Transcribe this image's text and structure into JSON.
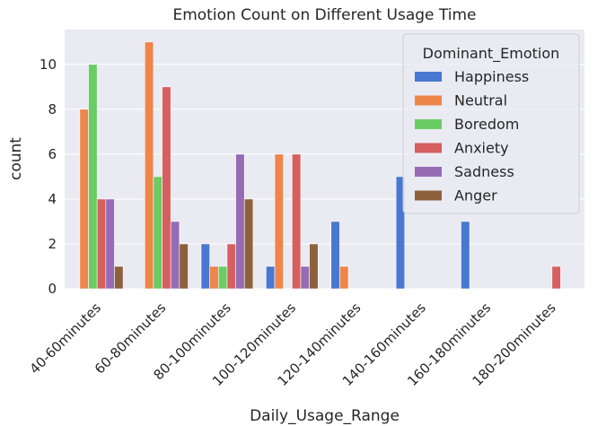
{
  "chart_data": {
    "type": "bar",
    "title": "Emotion Count on Different Usage Time",
    "xlabel": "Daily_Usage_Range",
    "ylabel": "count",
    "ylim": [
      0,
      11.55
    ],
    "yticks": [
      0,
      2,
      4,
      6,
      8,
      10
    ],
    "grid": true,
    "legend_placement": "top-right",
    "legend_title": "Dominant_Emotion",
    "categories": [
      "40-60minutes",
      "60-80minutes",
      "80-100minutes",
      "100-120minutes",
      "120-140minutes",
      "140-160minutes",
      "160-180minutes",
      "180-200minutes"
    ],
    "series": [
      {
        "name": "Happiness",
        "color": "#4878d0",
        "values": [
          0,
          0,
          2,
          1,
          3,
          5,
          3,
          0
        ]
      },
      {
        "name": "Neutral",
        "color": "#ee854a",
        "values": [
          8,
          11,
          1,
          6,
          1,
          0,
          0,
          0
        ]
      },
      {
        "name": "Boredom",
        "color": "#6acc64",
        "values": [
          10,
          5,
          1,
          0,
          0,
          0,
          0,
          0
        ]
      },
      {
        "name": "Anxiety",
        "color": "#d65f5f",
        "values": [
          4,
          9,
          2,
          6,
          0,
          0,
          0,
          1
        ]
      },
      {
        "name": "Sadness",
        "color": "#956cb4",
        "values": [
          4,
          3,
          6,
          1,
          0,
          0,
          0,
          0
        ]
      },
      {
        "name": "Anger",
        "color": "#8c613c",
        "values": [
          1,
          2,
          4,
          2,
          0,
          0,
          0,
          0
        ]
      }
    ],
    "colors": {
      "plot_background": "#eaeaf2",
      "grid": "#ffffff",
      "text": "#262626"
    }
  }
}
